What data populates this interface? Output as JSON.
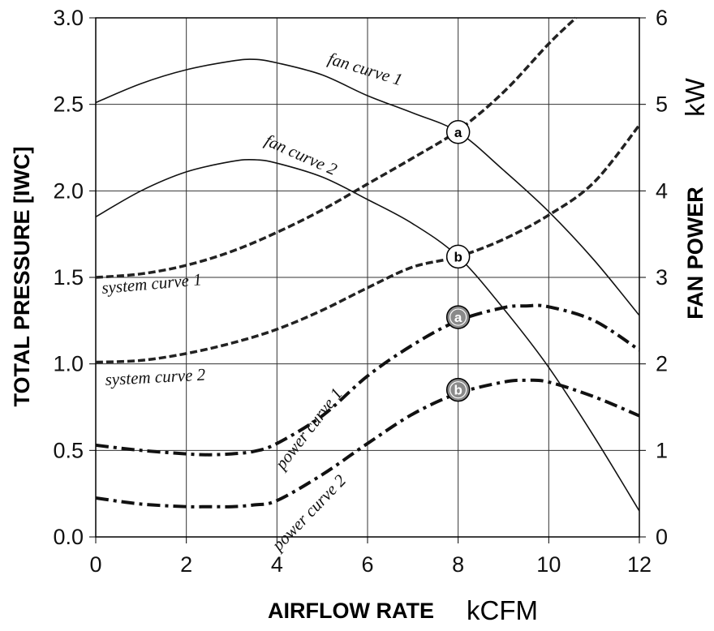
{
  "chart_data": {
    "type": "line",
    "title": "",
    "xlabel": "AIRFLOW RATE",
    "x_unit": "kCFM",
    "ylabel": "TOTAL PRESSURE [IWC]",
    "y2label": "FAN POWER",
    "y2_unit": "kW",
    "xlim": [
      0,
      12
    ],
    "ylim": [
      0,
      3
    ],
    "y2lim": [
      0,
      6
    ],
    "x_ticks": [
      "0",
      "2",
      "4",
      "6",
      "8",
      "10",
      "12"
    ],
    "y_ticks": [
      "0.0",
      "0.5",
      "1.0",
      "1.5",
      "2.0",
      "2.5",
      "3.0"
    ],
    "y2_ticks": [
      "0",
      "1",
      "2",
      "3",
      "4",
      "5",
      "6"
    ],
    "grid": true,
    "series": [
      {
        "name": "fan curve 1",
        "axis": "left",
        "style": "solid",
        "x": [
          0,
          1,
          2,
          3,
          3.5,
          4,
          5,
          6,
          7,
          8,
          9,
          10,
          11,
          12
        ],
        "y": [
          2.51,
          2.62,
          2.7,
          2.75,
          2.76,
          2.74,
          2.67,
          2.55,
          2.45,
          2.34,
          2.12,
          1.88,
          1.6,
          1.28
        ]
      },
      {
        "name": "fan curve 2",
        "axis": "left",
        "style": "solid",
        "x": [
          0,
          1,
          2,
          3,
          3.5,
          4,
          5,
          6,
          7,
          8,
          9,
          10,
          11,
          12
        ],
        "y": [
          1.85,
          2.0,
          2.11,
          2.17,
          2.18,
          2.16,
          2.08,
          1.95,
          1.81,
          1.62,
          1.32,
          0.98,
          0.58,
          0.15
        ]
      },
      {
        "name": "system curve 1",
        "axis": "left",
        "style": "dashed",
        "x": [
          0,
          1,
          2,
          3,
          4,
          5,
          6,
          7,
          8,
          9,
          10,
          10.6
        ],
        "y": [
          1.5,
          1.52,
          1.57,
          1.65,
          1.76,
          1.89,
          2.04,
          2.19,
          2.35,
          2.57,
          2.85,
          3.0
        ]
      },
      {
        "name": "system curve 2",
        "axis": "left",
        "style": "dashed",
        "x": [
          0,
          1,
          2,
          3,
          4,
          5,
          6,
          7,
          8,
          9,
          10,
          11,
          12
        ],
        "y": [
          1.01,
          1.02,
          1.06,
          1.12,
          1.2,
          1.31,
          1.44,
          1.56,
          1.62,
          1.72,
          1.86,
          2.05,
          2.38
        ]
      },
      {
        "name": "power curve 1",
        "axis": "right",
        "style": "dash-dot",
        "x": [
          0,
          1,
          2,
          2.5,
          3,
          3.5,
          4,
          5,
          6,
          7,
          8,
          9,
          9.5,
          10,
          11,
          12
        ],
        "y": [
          1.06,
          1.0,
          0.96,
          0.95,
          0.96,
          0.99,
          1.08,
          1.4,
          1.86,
          2.22,
          2.5,
          2.65,
          2.67,
          2.66,
          2.5,
          2.16
        ]
      },
      {
        "name": "power curve 2",
        "axis": "right",
        "style": "dash-dot",
        "x": [
          0,
          1,
          2,
          2.5,
          3,
          3.5,
          4,
          5,
          6,
          7,
          8,
          9,
          9.5,
          10,
          11,
          12
        ],
        "y": [
          0.45,
          0.38,
          0.35,
          0.35,
          0.35,
          0.37,
          0.42,
          0.72,
          1.08,
          1.42,
          1.66,
          1.79,
          1.81,
          1.79,
          1.62,
          1.4
        ]
      }
    ],
    "operating_points": [
      {
        "label": "a",
        "x": 8,
        "y": 2.34,
        "axis": "left",
        "style": "open"
      },
      {
        "label": "b",
        "x": 8,
        "y": 1.62,
        "axis": "left",
        "style": "open"
      },
      {
        "label": "a",
        "x": 8,
        "y": 2.54,
        "axis": "right",
        "style": "filled"
      },
      {
        "label": "b",
        "x": 8,
        "y": 1.7,
        "axis": "right",
        "style": "filled"
      }
    ]
  }
}
